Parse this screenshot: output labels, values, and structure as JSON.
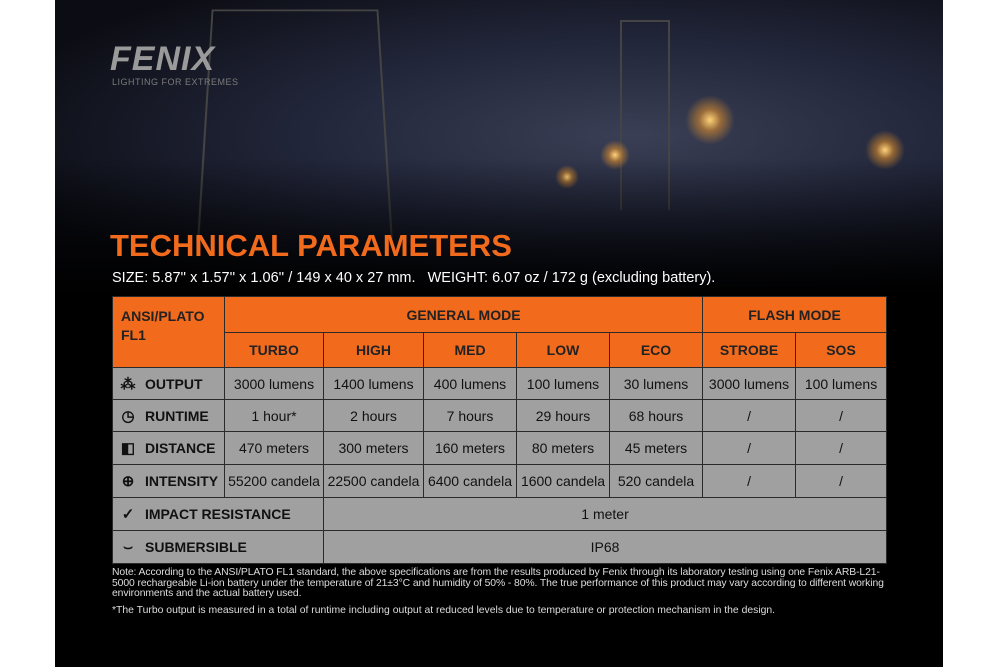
{
  "brand": {
    "logo": "FENIX",
    "tagline": "LIGHTING FOR EXTREMES"
  },
  "title": "TECHNICAL PARAMETERS",
  "size_line": "SIZE: 5.87'' x 1.57'' x 1.06'' / 149 x 40 x 27 mm.   WEIGHT: 6.07 oz / 172 g (excluding battery).",
  "table": {
    "corner": "ANSI/PLATO FL1",
    "groups": [
      "GENERAL MODE",
      "FLASH MODE"
    ],
    "modes": [
      "TURBO",
      "HIGH",
      "MED",
      "LOW",
      "ECO",
      "STROBE",
      "SOS"
    ],
    "rows": [
      {
        "label": "OUTPUT",
        "icon": "burst-icon",
        "values": [
          "3000 lumens",
          "1400 lumens",
          "400 lumens",
          "100 lumens",
          "30 lumens",
          "3000 lumens",
          "100 lumens"
        ]
      },
      {
        "label": "RUNTIME",
        "icon": "clock-icon",
        "values": [
          "1 hour*",
          "2 hours",
          "7 hours",
          "29 hours",
          "68 hours",
          "/",
          "/"
        ]
      },
      {
        "label": "DISTANCE",
        "icon": "beam-icon",
        "values": [
          "470 meters",
          "300 meters",
          "160 meters",
          "80 meters",
          "45 meters",
          "/",
          "/"
        ]
      },
      {
        "label": "INTENSITY",
        "icon": "target-icon",
        "values": [
          "55200 candela",
          "22500 candela",
          "6400 candela",
          "1600 candela",
          "520 candela",
          "/",
          "/"
        ]
      }
    ],
    "impact": {
      "label": "IMPACT RESISTANCE",
      "icon": "impact-icon",
      "value": "1 meter"
    },
    "submersible": {
      "label": "SUBMERSIBLE",
      "icon": "water-icon",
      "value": "IP68"
    }
  },
  "colors": {
    "accent": "#f26b1d",
    "cell": "#a0a0a0"
  },
  "note": "Note: According to the ANSI/PLATO FL1 standard, the above specifications are from the results produced by Fenix through its laboratory testing using one Fenix ARB-L21-5000 rechargeable Li-ion battery under the temperature of 21±3°C and humidity of 50% - 80%. The true performance of this product may vary according to different working environments and the actual battery used.",
  "footnote": "*The Turbo output is measured in a total of runtime including output at reduced levels due to temperature or protection mechanism in the design."
}
